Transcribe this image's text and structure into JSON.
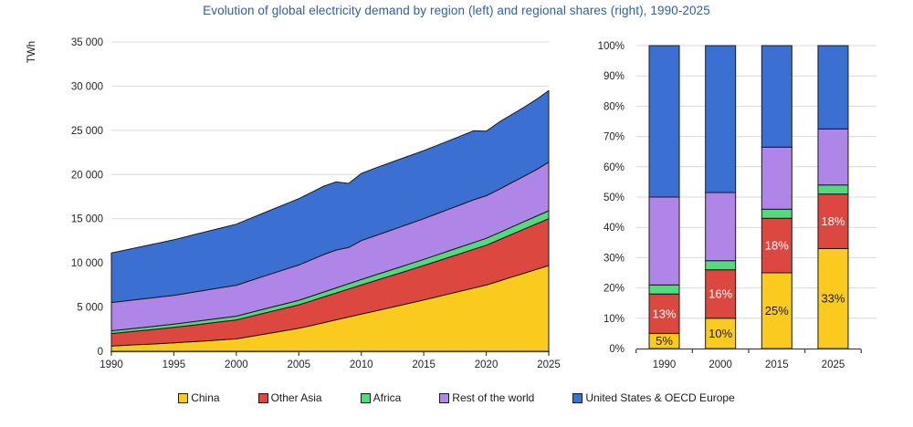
{
  "title": "Evolution of global electricity demand by region (left) and regional shares (right), 1990-2025",
  "colors": {
    "title": "#2B5FAE",
    "china": "#FACB1E",
    "other_asia": "#DC4840",
    "africa": "#55D97F",
    "rest_of_world": "#AF85E8",
    "us_oecd_europe": "#3B70D2",
    "outline": "#1A1A1A",
    "grid": "#D9D9D9",
    "axis": "#404040",
    "tick_text": "#262626"
  },
  "legend": {
    "position": "bottom",
    "items": [
      {
        "label": "China",
        "color": "#FACB1E"
      },
      {
        "label": "Other Asia",
        "color": "#DC4840"
      },
      {
        "label": "Africa",
        "color": "#55D97F"
      },
      {
        "label": "Rest of the world",
        "color": "#AF85E8"
      },
      {
        "label": "United States & OECD Europe",
        "color": "#3B70D2"
      }
    ]
  },
  "chart_data": [
    {
      "type": "area",
      "stacked": true,
      "panel": "left",
      "ylabel": "TWh",
      "xlabel": "",
      "ylim": [
        0,
        35000
      ],
      "grid": true,
      "x": [
        1990,
        1991,
        1992,
        1993,
        1994,
        1995,
        1996,
        1997,
        1998,
        1999,
        2000,
        2001,
        2002,
        2003,
        2004,
        2005,
        2006,
        2007,
        2008,
        2009,
        2010,
        2011,
        2012,
        2013,
        2014,
        2015,
        2016,
        2017,
        2018,
        2019,
        2020,
        2021,
        2022,
        2023,
        2024,
        2025
      ],
      "xticks": [
        1990,
        1995,
        2000,
        2005,
        2010,
        2015,
        2020,
        2025
      ],
      "yticks": [
        0,
        5000,
        10000,
        15000,
        20000,
        25000,
        30000,
        35000
      ],
      "ytick_labels": [
        "0",
        "5 000",
        "10 000",
        "15 000",
        "20 000",
        "25 000",
        "30 000",
        "35 000"
      ],
      "series": [
        {
          "name": "China",
          "color": "#FACB1E",
          "values": [
            600,
            670,
            740,
            810,
            880,
            950,
            1040,
            1130,
            1220,
            1310,
            1400,
            1640,
            1880,
            2120,
            2360,
            2600,
            2920,
            3240,
            3560,
            3880,
            4200,
            4520,
            4840,
            5160,
            5480,
            5800,
            6140,
            6480,
            6820,
            7160,
            7500,
            7940,
            8380,
            8820,
            9260,
            9700
          ]
        },
        {
          "name": "Other Asia",
          "color": "#DC4840",
          "values": [
            1400,
            1470,
            1540,
            1610,
            1680,
            1750,
            1830,
            1910,
            1990,
            2070,
            2150,
            2250,
            2350,
            2450,
            2550,
            2650,
            2780,
            2910,
            3040,
            3170,
            3300,
            3420,
            3540,
            3660,
            3780,
            3900,
            4020,
            4140,
            4260,
            4380,
            4500,
            4660,
            4820,
            4980,
            5140,
            5300
          ]
        },
        {
          "name": "Africa",
          "color": "#55D97F",
          "values": [
            320,
            330,
            340,
            350,
            360,
            370,
            382,
            394,
            406,
            418,
            430,
            448,
            466,
            484,
            502,
            520,
            540,
            560,
            580,
            600,
            620,
            636,
            652,
            668,
            684,
            700,
            716,
            732,
            748,
            764,
            780,
            804,
            828,
            852,
            876,
            900
          ]
        },
        {
          "name": "Rest of the world",
          "color": "#AF85E8",
          "values": [
            3200,
            3210,
            3220,
            3230,
            3240,
            3250,
            3300,
            3350,
            3400,
            3450,
            3500,
            3600,
            3700,
            3800,
            3900,
            4000,
            4120,
            4240,
            4280,
            4100,
            4400,
            4440,
            4480,
            4520,
            4560,
            4600,
            4660,
            4720,
            4780,
            4840,
            4820,
            4900,
            5020,
            5140,
            5260,
            5500
          ]
        },
        {
          "name": "United States & OECD Europe",
          "color": "#3B70D2",
          "values": [
            5600,
            5740,
            5880,
            6020,
            6160,
            6300,
            6420,
            6540,
            6660,
            6780,
            6900,
            7020,
            7140,
            7260,
            7380,
            7500,
            7620,
            7740,
            7700,
            7250,
            7600,
            7650,
            7660,
            7680,
            7690,
            7700,
            7720,
            7750,
            7780,
            7800,
            7300,
            7600,
            7700,
            7800,
            7950,
            8100
          ]
        }
      ]
    },
    {
      "type": "bar",
      "stacked": true,
      "percent": true,
      "panel": "right",
      "ylim": [
        0,
        100
      ],
      "grid": true,
      "categories": [
        "1990",
        "2000",
        "2015",
        "2025"
      ],
      "ytick_labels": [
        "0%",
        "10%",
        "20%",
        "30%",
        "40%",
        "50%",
        "60%",
        "70%",
        "80%",
        "90%",
        "100%"
      ],
      "series": [
        {
          "name": "China",
          "color": "#FACB1E",
          "values": [
            5,
            10,
            25,
            33
          ],
          "labels": [
            "5%",
            "10%",
            "25%",
            "33%"
          ],
          "label_color": "#1A1A1A"
        },
        {
          "name": "Other Asia",
          "color": "#DC4840",
          "values": [
            13,
            16,
            18,
            18
          ],
          "labels": [
            "13%",
            "16%",
            "18%",
            "18%"
          ],
          "label_color": "#FFFFFF"
        },
        {
          "name": "Africa",
          "color": "#55D97F",
          "values": [
            3,
            3,
            3,
            3
          ],
          "labels": null,
          "label_color": null
        },
        {
          "name": "Rest of the world",
          "color": "#AF85E8",
          "values": [
            29,
            22.5,
            20.5,
            18.5
          ],
          "labels": null,
          "label_color": null
        },
        {
          "name": "United States & OECD Europe",
          "color": "#3B70D2",
          "values": [
            50,
            48.5,
            33.5,
            27.5
          ],
          "labels": null,
          "label_color": null
        }
      ]
    }
  ]
}
